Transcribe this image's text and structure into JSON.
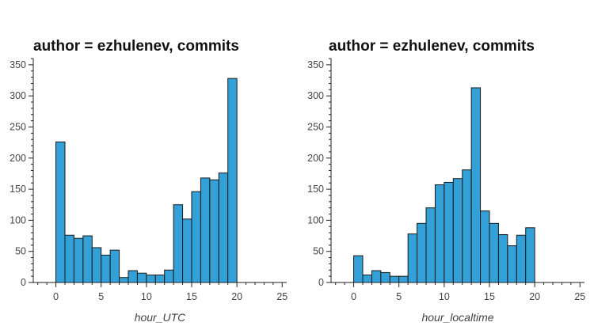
{
  "chart_data": [
    {
      "type": "bar",
      "title": "author = ezhulenev, commits",
      "xlabel": "hour_UTC",
      "ylabel": "",
      "xlim": [
        -2.5,
        25.5
      ],
      "ylim": [
        0,
        360
      ],
      "xticks": [
        0,
        5,
        10,
        15,
        20,
        25
      ],
      "yticks": [
        0,
        50,
        100,
        150,
        200,
        250,
        300,
        350
      ],
      "bin_width": 1,
      "x": [
        0,
        1,
        2,
        3,
        4,
        5,
        6,
        7,
        8,
        9,
        10,
        11,
        12,
        13,
        14,
        15,
        16,
        17,
        18,
        19,
        20,
        21,
        22
      ],
      "values": [
        226,
        76,
        71,
        75,
        56,
        44,
        52,
        8,
        19,
        15,
        12,
        12,
        20,
        125,
        102,
        146,
        168,
        165,
        176,
        328,
        0,
        0,
        0
      ],
      "color": "#34a0d8",
      "grid": false
    },
    {
      "type": "bar",
      "title": "author = ezhulenev, commits",
      "xlabel": "hour_localtime",
      "ylabel": "",
      "xlim": [
        -2.5,
        25.5
      ],
      "ylim": [
        0,
        360
      ],
      "xticks": [
        0,
        5,
        10,
        15,
        20,
        25
      ],
      "yticks": [
        0,
        50,
        100,
        150,
        200,
        250,
        300,
        350
      ],
      "bin_width": 1,
      "x": [
        0,
        1,
        2,
        3,
        4,
        5,
        6,
        7,
        8,
        9,
        10,
        11,
        12,
        13,
        14,
        15,
        16,
        17,
        18,
        19,
        20,
        21,
        22
      ],
      "values": [
        43,
        12,
        19,
        16,
        10,
        10,
        78,
        95,
        120,
        157,
        161,
        167,
        181,
        313,
        115,
        95,
        77,
        59,
        76,
        88,
        0,
        0,
        0
      ],
      "color": "#34a0d8",
      "grid": false
    }
  ]
}
